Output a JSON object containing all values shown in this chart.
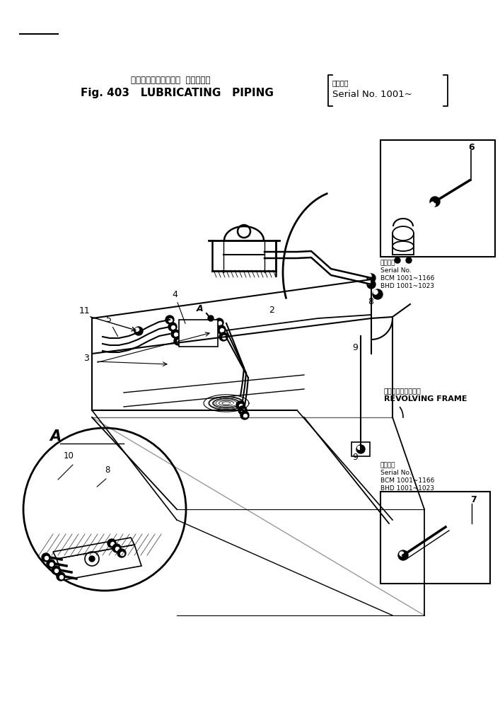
{
  "title_jp": "ルーブリケーティング  パイピング",
  "title_en": "Fig. 403   LUBRICATING   PIPING",
  "serial_jp": "適用号機",
  "serial_text": "Serial No. 1001~",
  "bg_color": "#ffffff",
  "line_color": "#000000",
  "revolving_frame_jp": "トルビングフレーム",
  "revolving_frame_en": "REVOLVING FRAME",
  "serial_no_label": "Serial No.",
  "serial_bcm": "BCM 1001~1166",
  "serial_bhd": "BHD 1001~1023"
}
